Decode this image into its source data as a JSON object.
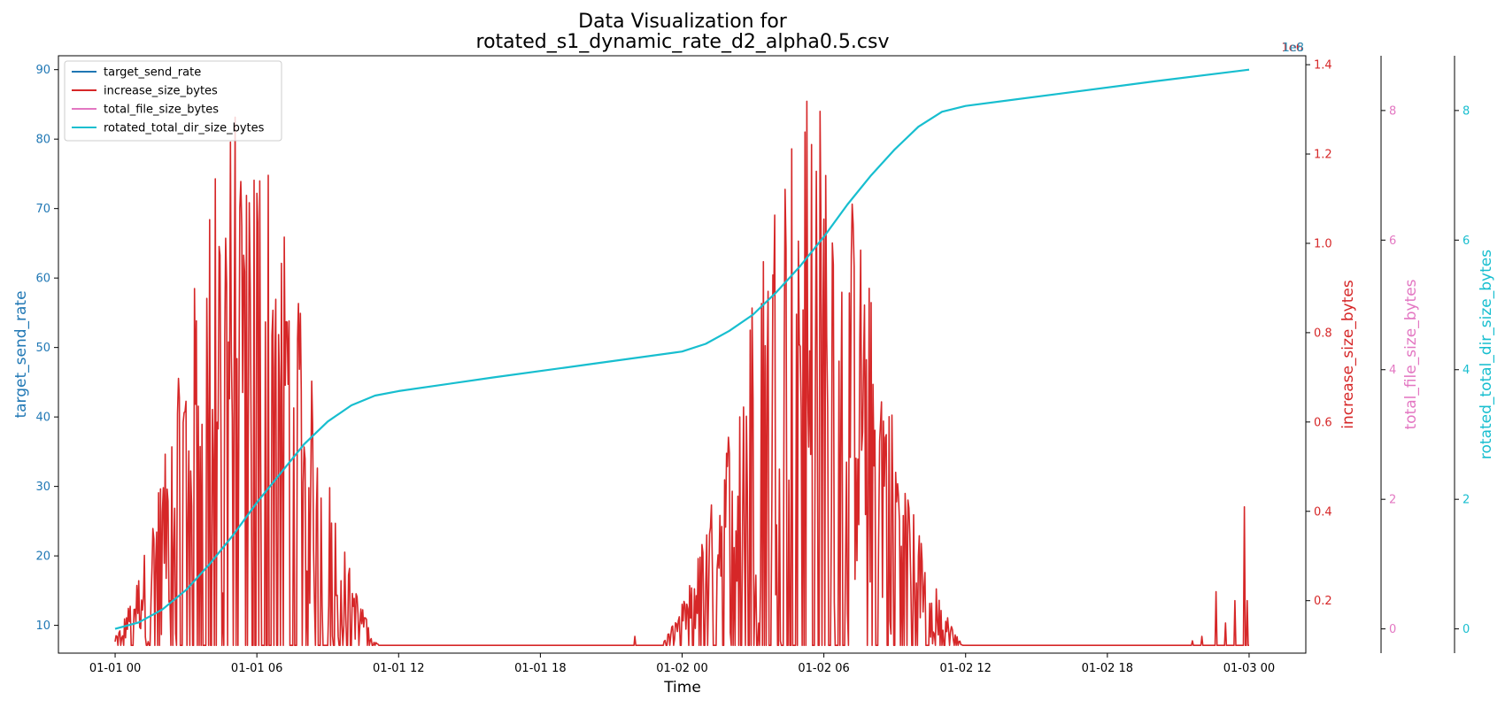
{
  "chart_data": {
    "type": "line",
    "title_line1": "Data Visualization for",
    "title_line2": "rotated_s1_dynamic_rate_d2_alpha0.5.csv",
    "xlabel": "Time",
    "x_ticks": [
      "01-01 00",
      "01-01 06",
      "01-01 12",
      "01-01 18",
      "01-02 00",
      "01-02 06",
      "01-02 12",
      "01-02 18",
      "01-03 00"
    ],
    "x_range_hours": [
      -2.4,
      50.4
    ],
    "axes": [
      {
        "id": "target_send_rate",
        "label": "target_send_rate",
        "color": "#1f77b4",
        "ylim": [
          6,
          92
        ],
        "ticks": [
          10,
          20,
          30,
          40,
          50,
          60,
          70,
          80,
          90
        ],
        "tick_labels": [
          "10",
          "20",
          "30",
          "40",
          "50",
          "60",
          "70",
          "80",
          "90"
        ]
      },
      {
        "id": "increase_size_bytes",
        "label": "increase_size_bytes",
        "color": "#d62728",
        "ylim": [
          0.0825,
          1.42
        ],
        "ticks": [
          0.2,
          0.4,
          0.6,
          0.8,
          1.0,
          1.2,
          1.4
        ],
        "tick_labels": [
          "0.2",
          "0.4",
          "0.6",
          "0.8",
          "1.0",
          "1.2",
          "1.4"
        ],
        "offset_text": "1e6"
      },
      {
        "id": "total_file_size_bytes",
        "label": "total_file_size_bytes",
        "color": "#e377c2",
        "ylim": [
          -0.374,
          8.845
        ],
        "ticks": [
          0,
          2,
          4,
          6,
          8
        ],
        "tick_labels": [
          "0",
          "2",
          "4",
          "6",
          "8"
        ]
      },
      {
        "id": "rotated_total_dir_size_bytes",
        "label": "rotated_total_dir_size_bytes",
        "color": "#17becf",
        "ylim": [
          -0.374,
          8.845
        ],
        "ticks": [
          0,
          2,
          4,
          6,
          8
        ],
        "tick_labels": [
          "0",
          "2",
          "4",
          "6",
          "8"
        ],
        "offset_text": "1e8"
      }
    ],
    "legend": {
      "placement": "upper left",
      "entries": [
        {
          "label": "target_send_rate",
          "color": "#1f77b4"
        },
        {
          "label": "increase_size_bytes",
          "color": "#d62728"
        },
        {
          "label": "total_file_size_bytes",
          "color": "#e377c2"
        },
        {
          "label": "rotated_total_dir_size_bytes",
          "color": "#17becf"
        }
      ]
    },
    "series": [
      {
        "name": "rotated_total_dir_size_bytes",
        "axis": "rotated_total_dir_size_bytes",
        "color": "#17becf",
        "x_hours": [
          0,
          1,
          2,
          3,
          4,
          5,
          6,
          7,
          8,
          9,
          10,
          11,
          12,
          16,
          20,
          24,
          25,
          26,
          27,
          28,
          29,
          30,
          31,
          32,
          33,
          34,
          35,
          36,
          40,
          44,
          48
        ],
        "values": [
          0,
          0.1,
          0.3,
          0.6,
          1.0,
          1.45,
          1.95,
          2.4,
          2.85,
          3.2,
          3.45,
          3.6,
          3.67,
          3.88,
          4.08,
          4.28,
          4.4,
          4.6,
          4.85,
          5.2,
          5.6,
          6.05,
          6.55,
          7.0,
          7.4,
          7.75,
          7.98,
          8.07,
          8.26,
          8.45,
          8.63
        ]
      },
      {
        "name": "increase_size_bytes",
        "axis": "increase_size_bytes",
        "color": "#d62728",
        "baseline": 0.1,
        "bursts": [
          {
            "start_hour": 0,
            "end_hour": 13,
            "peak_hour": 5.5,
            "spread_hours": 2.5,
            "peak": 1.32
          },
          {
            "start_hour": 22.3,
            "end_hour": 37.5,
            "peak_hour": 29.5,
            "spread_hours": 2.8,
            "peak": 1.34
          }
        ],
        "spikes": [
          {
            "x_hour": 22.0,
            "value": 0.12
          },
          {
            "x_hour": 45.6,
            "value": 0.11
          },
          {
            "x_hour": 46.0,
            "value": 0.12
          },
          {
            "x_hour": 46.6,
            "value": 0.22
          },
          {
            "x_hour": 47.0,
            "value": 0.15
          },
          {
            "x_hour": 47.4,
            "value": 0.2
          },
          {
            "x_hour": 47.8,
            "value": 0.41
          },
          {
            "x_hour": 47.9,
            "value": 0.2
          }
        ]
      }
    ]
  }
}
